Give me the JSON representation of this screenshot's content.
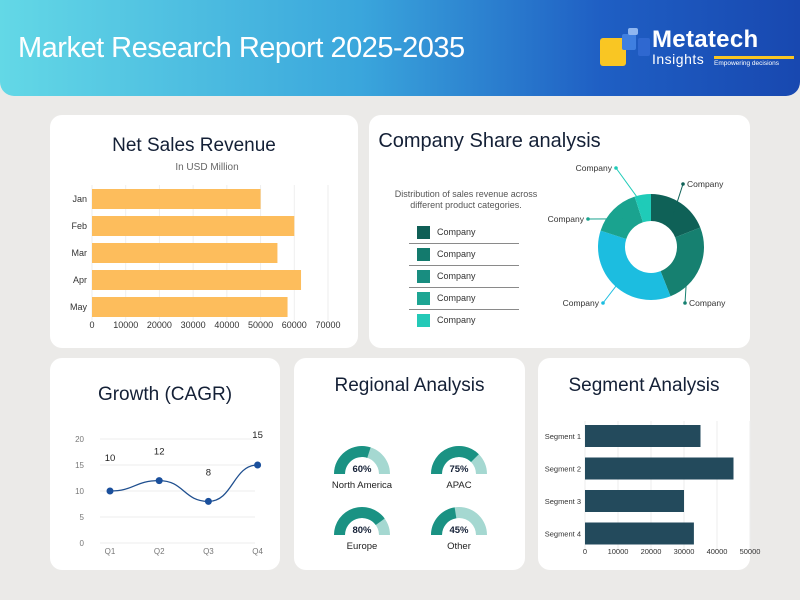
{
  "header": {
    "title": "Market Research Report 2025-2035",
    "logo": {
      "name": "Metatech",
      "sub": "Insights",
      "tagline": "Empowering decisions"
    }
  },
  "colors": {
    "bar_orange": "#fdbd5c",
    "segment_bar": "#234a5c",
    "line": "#1f4f8f",
    "gauge": "#1a9283",
    "gauge_light": "#a5d8d1"
  },
  "net_sales": {
    "title": "Net Sales Revenue",
    "subtitle": "In USD Million",
    "chart_data": {
      "type": "bar",
      "orientation": "horizontal",
      "categories": [
        "Jan",
        "Feb",
        "Mar",
        "Apr",
        "May"
      ],
      "values": [
        50000,
        60000,
        55000,
        62000,
        58000
      ],
      "xlim": [
        0,
        70000
      ],
      "ticks": [
        0,
        10000,
        20000,
        30000,
        40000,
        50000,
        60000,
        70000
      ],
      "grid": true
    }
  },
  "company_share": {
    "title": "Company Share analysis",
    "description": "Distribution of sales revenue across different product categories.",
    "legend": [
      {
        "label": "Company",
        "color": "#0f5f56"
      },
      {
        "label": "Company",
        "color": "#137a6d"
      },
      {
        "label": "Company",
        "color": "#188d80"
      },
      {
        "label": "Company",
        "color": "#1da593"
      },
      {
        "label": "Company",
        "color": "#24c9b7"
      }
    ],
    "chart_data": {
      "type": "pie",
      "donut": true,
      "labels": [
        "Company",
        "Company",
        "Company",
        "Company",
        "Company"
      ],
      "values": [
        19,
        25,
        36,
        15,
        5
      ],
      "colors": [
        "#0f6157",
        "#168070",
        "#1cbde0",
        "#1aa38f",
        "#1fcbb8"
      ]
    }
  },
  "growth": {
    "title": "Growth (CAGR)",
    "chart_data": {
      "type": "line",
      "categories": [
        "Q1",
        "Q2",
        "Q3",
        "Q4"
      ],
      "values": [
        10,
        12,
        8,
        15
      ],
      "ylim": [
        0,
        20
      ],
      "yticks": [
        "0",
        "5",
        "10",
        "15",
        "20"
      ],
      "data_labels": [
        "10",
        "12",
        "8",
        "15"
      ],
      "grid": true
    }
  },
  "regional": {
    "title": "Regional  Analysis",
    "items": [
      {
        "label": "North America",
        "value": "60%",
        "fraction": 0.6
      },
      {
        "label": "APAC",
        "value": "75%",
        "fraction": 0.75
      },
      {
        "label": "Europe",
        "value": "80%",
        "fraction": 0.8
      },
      {
        "label": "Other",
        "value": "45%",
        "fraction": 0.45
      }
    ]
  },
  "segment": {
    "title": "Segment Analysis",
    "chart_data": {
      "type": "bar",
      "orientation": "horizontal",
      "categories": [
        "Segment 1",
        "Segment 2",
        "Segment 3",
        "Segment 4"
      ],
      "values": [
        35000,
        45000,
        30000,
        33000
      ],
      "xlim": [
        0,
        50000
      ],
      "ticks": [
        0,
        10000,
        20000,
        30000,
        40000,
        50000
      ],
      "grid": true
    }
  }
}
